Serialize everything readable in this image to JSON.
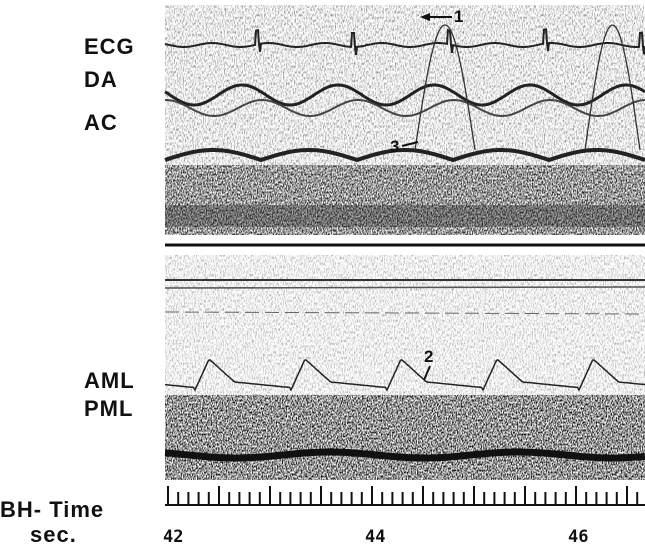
{
  "labels": {
    "ecg": "ECG",
    "da": "DA",
    "ac": "AC",
    "aml": "AML",
    "pml": "PML"
  },
  "markers": [
    "1",
    "2",
    "3"
  ],
  "time_axis": {
    "label": "BH- Time",
    "unit": "sec.",
    "ticks": [
      "42",
      "44",
      "46"
    ]
  }
}
